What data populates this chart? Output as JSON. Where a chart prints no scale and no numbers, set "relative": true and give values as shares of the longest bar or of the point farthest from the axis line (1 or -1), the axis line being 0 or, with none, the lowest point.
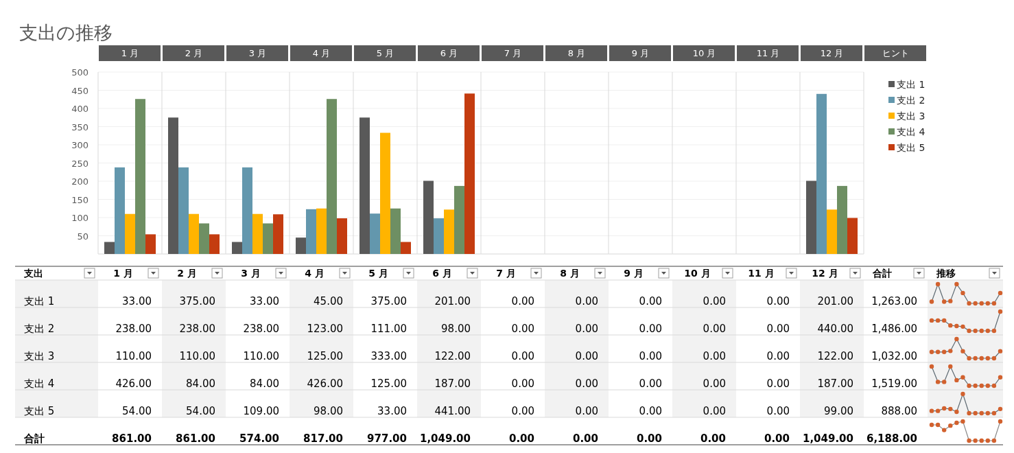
{
  "chart_data": [
    {
      "type": "bar",
      "title": "支出の推移",
      "categories": [
        "1 月",
        "2 月",
        "3 月",
        "4 月",
        "5 月",
        "6 月",
        "7 月",
        "8 月",
        "9 月",
        "10 月",
        "11 月",
        "12 月"
      ],
      "series": [
        {
          "name": "支出 1",
          "color": "#595959",
          "values": [
            33,
            375,
            33,
            45,
            375,
            201,
            0,
            0,
            0,
            0,
            0,
            201
          ]
        },
        {
          "name": "支出 2",
          "color": "#6397ad",
          "values": [
            238,
            238,
            238,
            123,
            111,
            98,
            0,
            0,
            0,
            0,
            0,
            440
          ]
        },
        {
          "name": "支出 3",
          "color": "#ffb400",
          "values": [
            110,
            110,
            110,
            125,
            333,
            122,
            0,
            0,
            0,
            0,
            0,
            122
          ]
        },
        {
          "name": "支出 4",
          "color": "#6e8f63",
          "values": [
            426,
            84,
            84,
            426,
            125,
            187,
            0,
            0,
            0,
            0,
            0,
            187
          ]
        },
        {
          "name": "支出 5",
          "color": "#c43c10",
          "values": [
            54,
            54,
            109,
            98,
            33,
            441,
            0,
            0,
            0,
            0,
            0,
            99
          ]
        }
      ],
      "ylim": [
        0,
        500
      ],
      "yticks": [
        {
          "value": 0,
          "label": null
        },
        50,
        100,
        150,
        200,
        250,
        300,
        350,
        400,
        450,
        500
      ],
      "grid": true,
      "legend": "right",
      "annotations": [
        "ヒント"
      ]
    },
    {
      "type": "other",
      "annotations": [
        "支出",
        "合計",
        "推移",
        "支出 1",
        "33.00",
        "375.00",
        "33.00",
        "45.00",
        "375.00",
        "201.00",
        "0.00",
        "0.00",
        "0.00",
        "0.00",
        "0.00",
        "201.00",
        "1,263.00",
        "支出 2",
        "238.00",
        "238.00",
        "238.00",
        "123.00",
        "111.00",
        "98.00",
        "0.00",
        "0.00",
        "0.00",
        "0.00",
        "0.00",
        "440.00",
        "1,486.00",
        "支出 3",
        "110.00",
        "110.00",
        "110.00",
        "125.00",
        "333.00",
        "122.00",
        "0.00",
        "0.00",
        "0.00",
        "0.00",
        "0.00",
        "122.00",
        "1,032.00",
        "支出 4",
        "426.00",
        "84.00",
        "84.00",
        "426.00",
        "125.00",
        "187.00",
        "0.00",
        "0.00",
        "0.00",
        "0.00",
        "0.00",
        "187.00",
        "1,519.00",
        "支出 5",
        "54.00",
        "54.00",
        "109.00",
        "98.00",
        "33.00",
        "441.00",
        "0.00",
        "0.00",
        "0.00",
        "0.00",
        "0.00",
        "99.00",
        "888.00",
        "合計",
        "861.00",
        "861.00",
        "574.00",
        "817.00",
        "977.00",
        "1,049.00",
        "0.00",
        "0.00",
        "0.00",
        "0.00",
        "0.00",
        "1,049.00",
        "6,188.00"
      ]
    },
    {
      "type": "line",
      "relative": true,
      "marker": "circle",
      "categories": [
        null,
        null,
        null,
        null,
        null,
        null,
        null,
        null,
        null,
        null,
        null,
        null
      ],
      "series": [
        {
          "color": "#5f6b73",
          "colors": [
            "#d2612e",
            "#d2612e",
            "#d2612e",
            "#d2612e",
            "#d2612e",
            "#d2612e",
            "#d2612e",
            "#d2612e",
            "#d2612e",
            "#d2612e",
            "#d2612e",
            "#d2612e"
          ],
          "values": [
            0.09,
            1,
            0.09,
            0.12,
            1,
            0.54,
            0,
            0,
            0,
            0,
            0,
            0.54
          ]
        }
      ]
    },
    {
      "type": "line",
      "relative": true,
      "marker": "circle",
      "categories": [
        null,
        null,
        null,
        null,
        null,
        null,
        null,
        null,
        null,
        null,
        null,
        null
      ],
      "series": [
        {
          "color": "#5f6b73",
          "colors": [
            "#d2612e",
            "#d2612e",
            "#d2612e",
            "#d2612e",
            "#d2612e",
            "#d2612e",
            "#d2612e",
            "#d2612e",
            "#d2612e",
            "#d2612e",
            "#d2612e",
            "#d2612e"
          ],
          "values": [
            0.54,
            0.54,
            0.54,
            0.28,
            0.25,
            0.22,
            0,
            0,
            0,
            0,
            0,
            1
          ]
        }
      ]
    },
    {
      "type": "line",
      "relative": true,
      "marker": "circle",
      "categories": [
        null,
        null,
        null,
        null,
        null,
        null,
        null,
        null,
        null,
        null,
        null,
        null
      ],
      "series": [
        {
          "color": "#5f6b73",
          "colors": [
            "#d2612e",
            "#d2612e",
            "#d2612e",
            "#d2612e",
            "#d2612e",
            "#d2612e",
            "#d2612e",
            "#d2612e",
            "#d2612e",
            "#d2612e",
            "#d2612e",
            "#d2612e"
          ],
          "values": [
            0.33,
            0.33,
            0.33,
            0.38,
            1,
            0.37,
            0,
            0,
            0,
            0,
            0,
            0.37
          ]
        }
      ]
    },
    {
      "type": "line",
      "relative": true,
      "marker": "circle",
      "categories": [
        null,
        null,
        null,
        null,
        null,
        null,
        null,
        null,
        null,
        null,
        null,
        null
      ],
      "series": [
        {
          "color": "#5f6b73",
          "colors": [
            "#d2612e",
            "#d2612e",
            "#d2612e",
            "#d2612e",
            "#d2612e",
            "#d2612e",
            "#d2612e",
            "#d2612e",
            "#d2612e",
            "#d2612e",
            "#d2612e",
            "#d2612e"
          ],
          "values": [
            1,
            0.2,
            0.2,
            1,
            0.29,
            0.44,
            0,
            0,
            0,
            0,
            0,
            0.44
          ]
        }
      ]
    },
    {
      "type": "line",
      "relative": true,
      "marker": "circle",
      "categories": [
        null,
        null,
        null,
        null,
        null,
        null,
        null,
        null,
        null,
        null,
        null,
        null
      ],
      "series": [
        {
          "color": "#5f6b73",
          "colors": [
            "#d2612e",
            "#d2612e",
            "#d2612e",
            "#d2612e",
            "#d2612e",
            "#d2612e",
            "#d2612e",
            "#d2612e",
            "#d2612e",
            "#d2612e",
            "#d2612e",
            "#d2612e"
          ],
          "values": [
            0.12,
            0.12,
            0.25,
            0.22,
            0.07,
            1,
            0,
            0,
            0,
            0,
            0,
            0.22
          ]
        }
      ]
    },
    {
      "type": "line",
      "relative": true,
      "marker": "circle",
      "categories": [
        null,
        null,
        null,
        null,
        null,
        null,
        null,
        null,
        null,
        null,
        null,
        null
      ],
      "series": [
        {
          "color": "#8a8a8a",
          "colors": [
            "#d2612e",
            "#d2612e",
            "#d2612e",
            "#d2612e",
            "#d2612e",
            "#d2612e",
            "#d2612e",
            "#d2612e",
            "#d2612e",
            "#d2612e",
            "#d2612e",
            "#d2612e"
          ],
          "values": [
            0.82,
            0.82,
            0.55,
            0.78,
            0.93,
            1,
            0,
            0,
            0,
            0,
            0,
            1
          ]
        }
      ]
    }
  ]
}
